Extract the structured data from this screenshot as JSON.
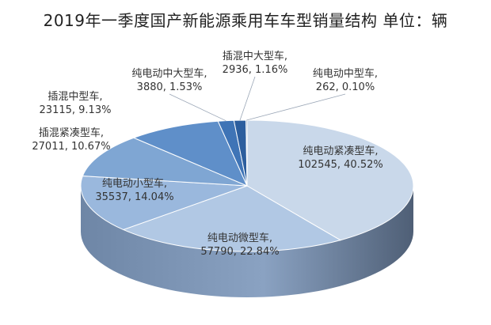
{
  "chart_data": {
    "type": "pie",
    "title": "2019年一季度国产新能源乘用车车型销量结构 单位：辆",
    "slices": [
      {
        "name": "纯电动紧凑型车",
        "value": 102545,
        "percent": "40.52%",
        "color": "#c9d8ea"
      },
      {
        "name": "纯电动微型车",
        "value": 57790,
        "percent": "22.84%",
        "color": "#b1c8e4"
      },
      {
        "name": "纯电动小型车",
        "value": 35537,
        "percent": "14.04%",
        "color": "#9ab8dd"
      },
      {
        "name": "插混紧凑型车",
        "value": 27011,
        "percent": "10.67%",
        "color": "#7fa6d3"
      },
      {
        "name": "插混中型车",
        "value": 23115,
        "percent": "9.13%",
        "color": "#5f8fc9"
      },
      {
        "name": "纯电动中大型车",
        "value": 3880,
        "percent": "1.53%",
        "color": "#3f74b6"
      },
      {
        "name": "插混中大型车",
        "value": 2936,
        "percent": "1.16%",
        "color": "#2c5e9e"
      },
      {
        "name": "纯电动中型车",
        "value": 262,
        "percent": "0.10%",
        "color": "#224d85"
      }
    ],
    "legend": "none"
  }
}
